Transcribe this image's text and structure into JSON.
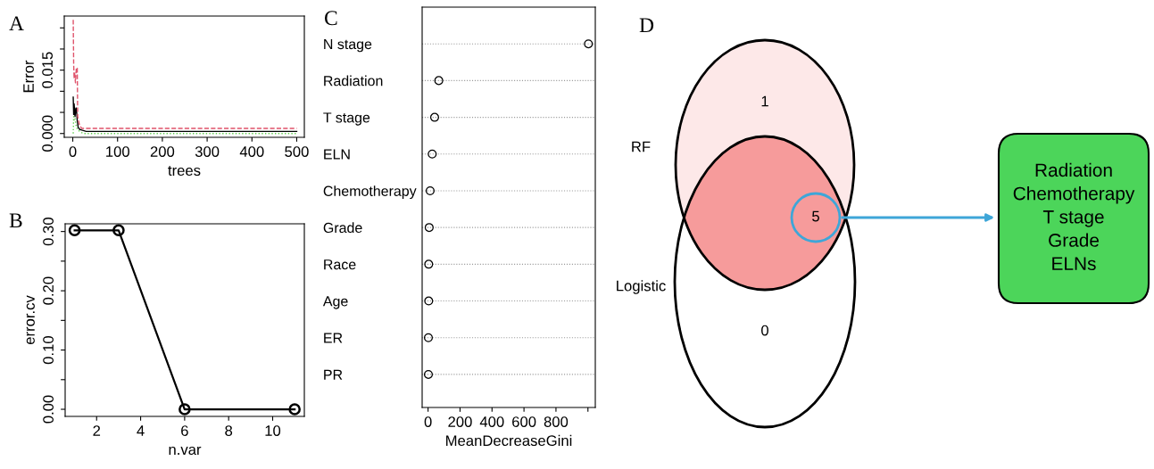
{
  "chart_data": [
    {
      "type": "line",
      "title": "A",
      "xlabel": "trees",
      "ylabel": "Error",
      "xlim": [
        -19,
        517
      ],
      "ylim": [
        -0.0009,
        0.0278
      ],
      "xticks": [
        0,
        100,
        200,
        300,
        400,
        500
      ],
      "yticks": [
        {
          "value": 0,
          "label": "0.000"
        },
        {
          "value": 0.005,
          "label": null
        },
        {
          "value": 0.01,
          "label": null
        },
        {
          "value": 0.015,
          "label": "0.015"
        },
        {
          "value": 0.02,
          "label": null
        },
        {
          "value": 0.025,
          "label": null
        }
      ],
      "grid": false,
      "marker": "none",
      "series": [
        {
          "color": "#000000",
          "line_style": "solid",
          "x": [
            1,
            2,
            3,
            5,
            7,
            8,
            10,
            12,
            15,
            20,
            30,
            500
          ],
          "values": [
            0.0086,
            0.0045,
            0.007,
            0.004,
            0.006,
            0.006,
            0.003,
            0.0015,
            0.001,
            0.0008,
            0.0005,
            0.0005
          ]
        },
        {
          "color": "#df536b",
          "line_style": "dashed",
          "x": [
            1,
            2,
            3,
            4,
            6,
            8,
            10,
            11,
            13,
            15,
            20,
            500
          ],
          "values": [
            0.0269,
            0.0165,
            0.013,
            0.0145,
            0.012,
            0.0156,
            0.0155,
            0.004,
            0.003,
            0.002,
            0.0012,
            0.0012
          ]
        },
        {
          "color": "#61d04f",
          "line_style": "dotted",
          "x": [
            1,
            2,
            3,
            5,
            8,
            12,
            18,
            25,
            500
          ],
          "values": [
            0,
            0.004,
            0.003,
            0.0035,
            0.0015,
            0.0008,
            0.0003,
            0,
            0
          ]
        }
      ]
    },
    {
      "type": "line",
      "title": "B",
      "xlabel": "n.var",
      "ylabel": "error.cv",
      "xlim": [
        0.57,
        11.44
      ],
      "ylim": [
        -0.012,
        0.313
      ],
      "xticks": [
        2,
        4,
        6,
        8,
        10
      ],
      "yticks": [
        {
          "value": 0,
          "label": "0.00"
        },
        {
          "value": 0.05,
          "label": null
        },
        {
          "value": 0.1,
          "label": "0.10"
        },
        {
          "value": 0.15,
          "label": null
        },
        {
          "value": 0.2,
          "label": "0.20"
        },
        {
          "value": 0.25,
          "label": null
        },
        {
          "value": 0.3,
          "label": "0.30"
        }
      ],
      "grid": false,
      "marker": "circle",
      "line_style": "solid",
      "series": [
        {
          "color": "#000000",
          "x": [
            1,
            3,
            6,
            11
          ],
          "values": [
            0.302,
            0.302,
            0,
            0
          ]
        }
      ]
    },
    {
      "type": "scatter",
      "title": "C",
      "xlabel": "MeanDecreaseGini",
      "orientation": "horizontal",
      "xlim": [
        -37,
        1046
      ],
      "xticks": [
        0,
        200,
        400,
        600,
        800,
        {
          "value": 1000,
          "label": null
        }
      ],
      "grid": "y",
      "marker": "circle",
      "categories": [
        "N stage",
        "Radiation",
        "T stage",
        "ELN",
        "Chemotherapy",
        "Grade",
        "Race",
        "Age",
        "ER",
        "PR"
      ],
      "series": [
        {
          "color": "#000000",
          "values": [
            1003,
            67,
            41,
            26,
            13,
            7,
            4,
            4,
            2,
            2
          ]
        }
      ]
    },
    {
      "type": "other",
      "title": "D",
      "categories": [
        null,
        null,
        null
      ],
      "values": [
        1,
        5,
        0
      ],
      "data_labels": true,
      "colors": [
        "#fde8e8",
        "#f69b9b",
        "#ffffff"
      ],
      "annotations": [
        "RF",
        "Logistic",
        "Radiation\nChemotherapy\nT stage\nGrade\nELNs"
      ]
    }
  ]
}
